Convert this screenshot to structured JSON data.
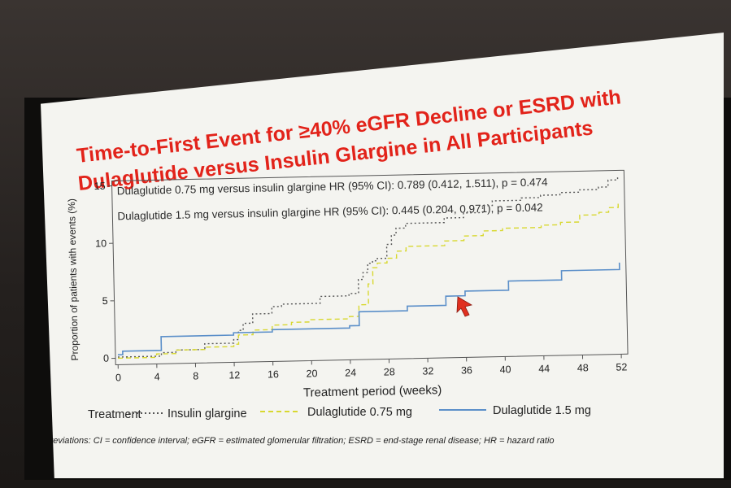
{
  "slide": {
    "title_line1": "Time-to-First Event for ≥40% eGFR Decline or ESRD with",
    "title_line2": "Dulaglutide versus Insulin Glargine in All Participants",
    "abbreviations": "Abbreviations: CI = confidence interval; eGFR = estimated glomerular filtration; ESRD = end-stage renal disease; HR = hazard ratio"
  },
  "annotations": {
    "hr_075": "Dulaglutide 0.75 mg versus insulin glargine HR (95% CI): 0.789 (0.412, 1.511), p = 0.474",
    "hr_15": "Dulaglutide 1.5 mg versus insulin glargine HR (95% CI): 0.445 (0.204, 0.971), p = 0.042"
  },
  "legend": {
    "title": "Treatment",
    "items": [
      "Insulin glargine",
      "Dulaglutide 0.75 mg",
      "Dulaglutide 1.5 mg"
    ]
  },
  "colors": {
    "insulin_glargine": "#555555",
    "dulaglutide_075": "#d8d830",
    "dulaglutide_15": "#5b8fc9",
    "title": "#e2231a",
    "cursor": "#e03020"
  },
  "chart_data": {
    "type": "line",
    "xlabel": "Treatment period (weeks)",
    "ylabel": "Proportion of patients with events (%)",
    "xlim": [
      0,
      52
    ],
    "ylim": [
      0,
      15
    ],
    "xticks": [
      "0",
      "4",
      "8",
      "12",
      "16",
      "20",
      "24",
      "28",
      "32",
      "36",
      "40",
      "44",
      "48",
      "52"
    ],
    "yticks": [
      "0",
      "5",
      "10",
      "15"
    ],
    "grid": false,
    "series": [
      {
        "name": "Insulin glargine",
        "style": "dotted",
        "x": [
          0,
          4.5,
          6,
          9,
          12,
          12.5,
          13,
          14,
          16,
          17,
          21,
          24,
          25,
          25.5,
          26,
          26.5,
          27,
          28,
          28.5,
          29,
          30,
          34,
          36,
          38,
          39,
          42,
          44,
          46,
          48,
          50,
          51,
          52
        ],
        "y": [
          0.1,
          0.4,
          0.6,
          1.1,
          1.4,
          2.2,
          2.8,
          3.6,
          4.2,
          4.4,
          5.0,
          5.2,
          6.4,
          7.0,
          7.8,
          8.0,
          8.2,
          9.4,
          10.2,
          10.8,
          11.2,
          11.6,
          12.0,
          12.6,
          13.0,
          13.2,
          13.4,
          13.6,
          13.8,
          14.0,
          14.6,
          15.0
        ]
      },
      {
        "name": "Dulaglutide 0.75 mg",
        "style": "dashed",
        "x": [
          0,
          4,
          6,
          9,
          12,
          12.5,
          14,
          16,
          18,
          20,
          24,
          25,
          26,
          26.5,
          27,
          28,
          29,
          30,
          34,
          36,
          38,
          40,
          44,
          46,
          48,
          50,
          51,
          52
        ],
        "y": [
          0.0,
          0.3,
          0.6,
          0.8,
          1.0,
          1.8,
          2.2,
          2.6,
          2.8,
          3.0,
          3.2,
          4.2,
          6.0,
          7.4,
          7.8,
          8.2,
          8.8,
          9.2,
          9.6,
          10.0,
          10.4,
          10.6,
          10.8,
          11.0,
          11.6,
          11.8,
          12.2,
          12.6
        ]
      },
      {
        "name": "Dulaglutide 1.5 mg",
        "style": "solid",
        "x": [
          0,
          0.5,
          4.5,
          12,
          16,
          24,
          25,
          30,
          34,
          36,
          40.5,
          46,
          52
        ],
        "y": [
          0.3,
          0.6,
          1.8,
          2.0,
          2.2,
          2.4,
          3.6,
          4.0,
          4.8,
          5.2,
          6.0,
          6.8,
          7.4
        ]
      }
    ]
  }
}
